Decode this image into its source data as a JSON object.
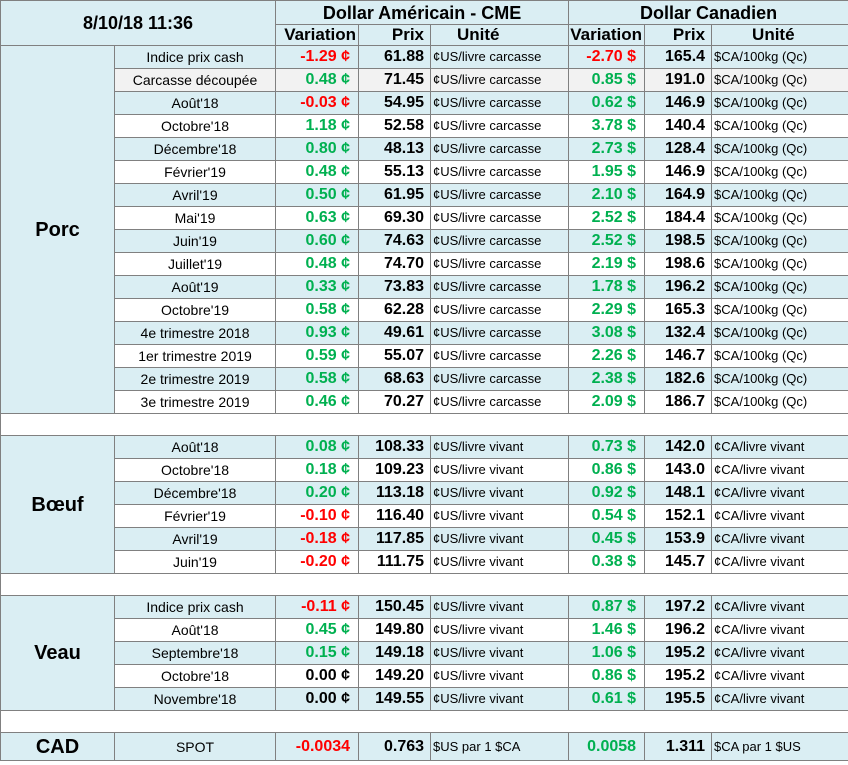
{
  "timestamp": "8/10/18 11:36",
  "headers": {
    "usd_group": "Dollar Américain - CME",
    "cad_group": "Dollar Canadien",
    "variation": "Variation",
    "prix": "Prix",
    "unite": "Unité"
  },
  "sections": [
    {
      "name": "Porc",
      "rows": [
        {
          "label": "Indice prix cash",
          "usd_var": "-1.29 ¢",
          "usd_price": "61.88",
          "usd_unit": "¢US/livre carcasse",
          "cad_var": "-2.70 $",
          "cad_price": "165.4",
          "cad_unit": "$CA/100kg (Qc)"
        },
        {
          "label": "Carcasse découpée",
          "usd_var": "0.48 ¢",
          "usd_price": "71.45",
          "usd_unit": "¢US/livre carcasse",
          "cad_var": "0.85 $",
          "cad_price": "191.0",
          "cad_unit": "$CA/100kg (Qc)"
        },
        {
          "label": "Août'18",
          "usd_var": "-0.03 ¢",
          "usd_price": "54.95",
          "usd_unit": "¢US/livre carcasse",
          "cad_var": "0.62 $",
          "cad_price": "146.9",
          "cad_unit": "$CA/100kg (Qc)"
        },
        {
          "label": "Octobre'18",
          "usd_var": "1.18 ¢",
          "usd_price": "52.58",
          "usd_unit": "¢US/livre carcasse",
          "cad_var": "3.78 $",
          "cad_price": "140.4",
          "cad_unit": "$CA/100kg (Qc)"
        },
        {
          "label": "Décembre'18",
          "usd_var": "0.80 ¢",
          "usd_price": "48.13",
          "usd_unit": "¢US/livre carcasse",
          "cad_var": "2.73 $",
          "cad_price": "128.4",
          "cad_unit": "$CA/100kg (Qc)"
        },
        {
          "label": "Février'19",
          "usd_var": "0.48 ¢",
          "usd_price": "55.13",
          "usd_unit": "¢US/livre carcasse",
          "cad_var": "1.95 $",
          "cad_price": "146.9",
          "cad_unit": "$CA/100kg (Qc)"
        },
        {
          "label": "Avril'19",
          "usd_var": "0.50 ¢",
          "usd_price": "61.95",
          "usd_unit": "¢US/livre carcasse",
          "cad_var": "2.10 $",
          "cad_price": "164.9",
          "cad_unit": "$CA/100kg (Qc)"
        },
        {
          "label": "Mai'19",
          "usd_var": "0.63 ¢",
          "usd_price": "69.30",
          "usd_unit": "¢US/livre carcasse",
          "cad_var": "2.52 $",
          "cad_price": "184.4",
          "cad_unit": "$CA/100kg (Qc)"
        },
        {
          "label": "Juin'19",
          "usd_var": "0.60 ¢",
          "usd_price": "74.63",
          "usd_unit": "¢US/livre carcasse",
          "cad_var": "2.52 $",
          "cad_price": "198.5",
          "cad_unit": "$CA/100kg (Qc)"
        },
        {
          "label": "Juillet'19",
          "usd_var": "0.48 ¢",
          "usd_price": "74.70",
          "usd_unit": "¢US/livre carcasse",
          "cad_var": "2.19 $",
          "cad_price": "198.6",
          "cad_unit": "$CA/100kg (Qc)"
        },
        {
          "label": "Août'19",
          "usd_var": "0.33 ¢",
          "usd_price": "73.83",
          "usd_unit": "¢US/livre carcasse",
          "cad_var": "1.78 $",
          "cad_price": "196.2",
          "cad_unit": "$CA/100kg (Qc)"
        },
        {
          "label": "Octobre'19",
          "usd_var": "0.58 ¢",
          "usd_price": "62.28",
          "usd_unit": "¢US/livre carcasse",
          "cad_var": "2.29 $",
          "cad_price": "165.3",
          "cad_unit": "$CA/100kg (Qc)"
        },
        {
          "label": "4e trimestre 2018",
          "usd_var": "0.93 ¢",
          "usd_price": "49.61",
          "usd_unit": "¢US/livre carcasse",
          "cad_var": "3.08 $",
          "cad_price": "132.4",
          "cad_unit": "$CA/100kg (Qc)"
        },
        {
          "label": "1er trimestre 2019",
          "usd_var": "0.59 ¢",
          "usd_price": "55.07",
          "usd_unit": "¢US/livre carcasse",
          "cad_var": "2.26 $",
          "cad_price": "146.7",
          "cad_unit": "$CA/100kg (Qc)"
        },
        {
          "label": "2e trimestre 2019",
          "usd_var": "0.58 ¢",
          "usd_price": "68.63",
          "usd_unit": "¢US/livre carcasse",
          "cad_var": "2.38 $",
          "cad_price": "182.6",
          "cad_unit": "$CA/100kg (Qc)"
        },
        {
          "label": "3e trimestre 2019",
          "usd_var": "0.46 ¢",
          "usd_price": "70.27",
          "usd_unit": "¢US/livre carcasse",
          "cad_var": "2.09 $",
          "cad_price": "186.7",
          "cad_unit": "$CA/100kg (Qc)"
        }
      ]
    },
    {
      "name": "Bœuf",
      "rows": [
        {
          "label": "Août'18",
          "usd_var": "0.08 ¢",
          "usd_price": "108.33",
          "usd_unit": "¢US/livre vivant",
          "cad_var": "0.73 $",
          "cad_price": "142.0",
          "cad_unit": "¢CA/livre vivant"
        },
        {
          "label": "Octobre'18",
          "usd_var": "0.18 ¢",
          "usd_price": "109.23",
          "usd_unit": "¢US/livre vivant",
          "cad_var": "0.86 $",
          "cad_price": "143.0",
          "cad_unit": "¢CA/livre vivant"
        },
        {
          "label": "Décembre'18",
          "usd_var": "0.20 ¢",
          "usd_price": "113.18",
          "usd_unit": "¢US/livre vivant",
          "cad_var": "0.92 $",
          "cad_price": "148.1",
          "cad_unit": "¢CA/livre vivant"
        },
        {
          "label": "Février'19",
          "usd_var": "-0.10 ¢",
          "usd_price": "116.40",
          "usd_unit": "¢US/livre vivant",
          "cad_var": "0.54 $",
          "cad_price": "152.1",
          "cad_unit": "¢CA/livre vivant"
        },
        {
          "label": "Avril'19",
          "usd_var": "-0.18 ¢",
          "usd_price": "117.85",
          "usd_unit": "¢US/livre vivant",
          "cad_var": "0.45 $",
          "cad_price": "153.9",
          "cad_unit": "¢CA/livre vivant"
        },
        {
          "label": "Juin'19",
          "usd_var": "-0.20 ¢",
          "usd_price": "111.75",
          "usd_unit": "¢US/livre vivant",
          "cad_var": "0.38 $",
          "cad_price": "145.7",
          "cad_unit": "¢CA/livre vivant"
        }
      ]
    },
    {
      "name": "Veau",
      "rows": [
        {
          "label": "Indice prix cash",
          "usd_var": "-0.11 ¢",
          "usd_price": "150.45",
          "usd_unit": "¢US/livre vivant",
          "cad_var": "0.87 $",
          "cad_price": "197.2",
          "cad_unit": "¢CA/livre vivant"
        },
        {
          "label": "Août'18",
          "usd_var": "0.45 ¢",
          "usd_price": "149.80",
          "usd_unit": "¢US/livre vivant",
          "cad_var": "1.46 $",
          "cad_price": "196.2",
          "cad_unit": "¢CA/livre vivant"
        },
        {
          "label": "Septembre'18",
          "usd_var": "0.15 ¢",
          "usd_price": "149.18",
          "usd_unit": "¢US/livre vivant",
          "cad_var": "1.06 $",
          "cad_price": "195.2",
          "cad_unit": "¢CA/livre vivant"
        },
        {
          "label": "Octobre'18",
          "usd_var": "0.00 ¢",
          "usd_price": "149.20",
          "usd_unit": "¢US/livre vivant",
          "cad_var": "0.86 $",
          "cad_price": "195.2",
          "cad_unit": "¢CA/livre vivant"
        },
        {
          "label": "Novembre'18",
          "usd_var": "0.00 ¢",
          "usd_price": "149.55",
          "usd_unit": "¢US/livre vivant",
          "cad_var": "0.61 $",
          "cad_price": "195.5",
          "cad_unit": "¢CA/livre vivant"
        }
      ]
    }
  ],
  "cad": {
    "name": "CAD",
    "label": "SPOT",
    "usd_var": "-0.0034",
    "usd_price": "0.763",
    "usd_unit": "$US par 1 $CA",
    "cad_var": "0.0058",
    "cad_price": "1.311",
    "cad_unit": "$CA par 1 $US"
  },
  "colors": {
    "header_bg": "#daeef3",
    "alt_row_bg": "#daeef3",
    "positive": "#00b050",
    "negative": "#ff0000"
  }
}
